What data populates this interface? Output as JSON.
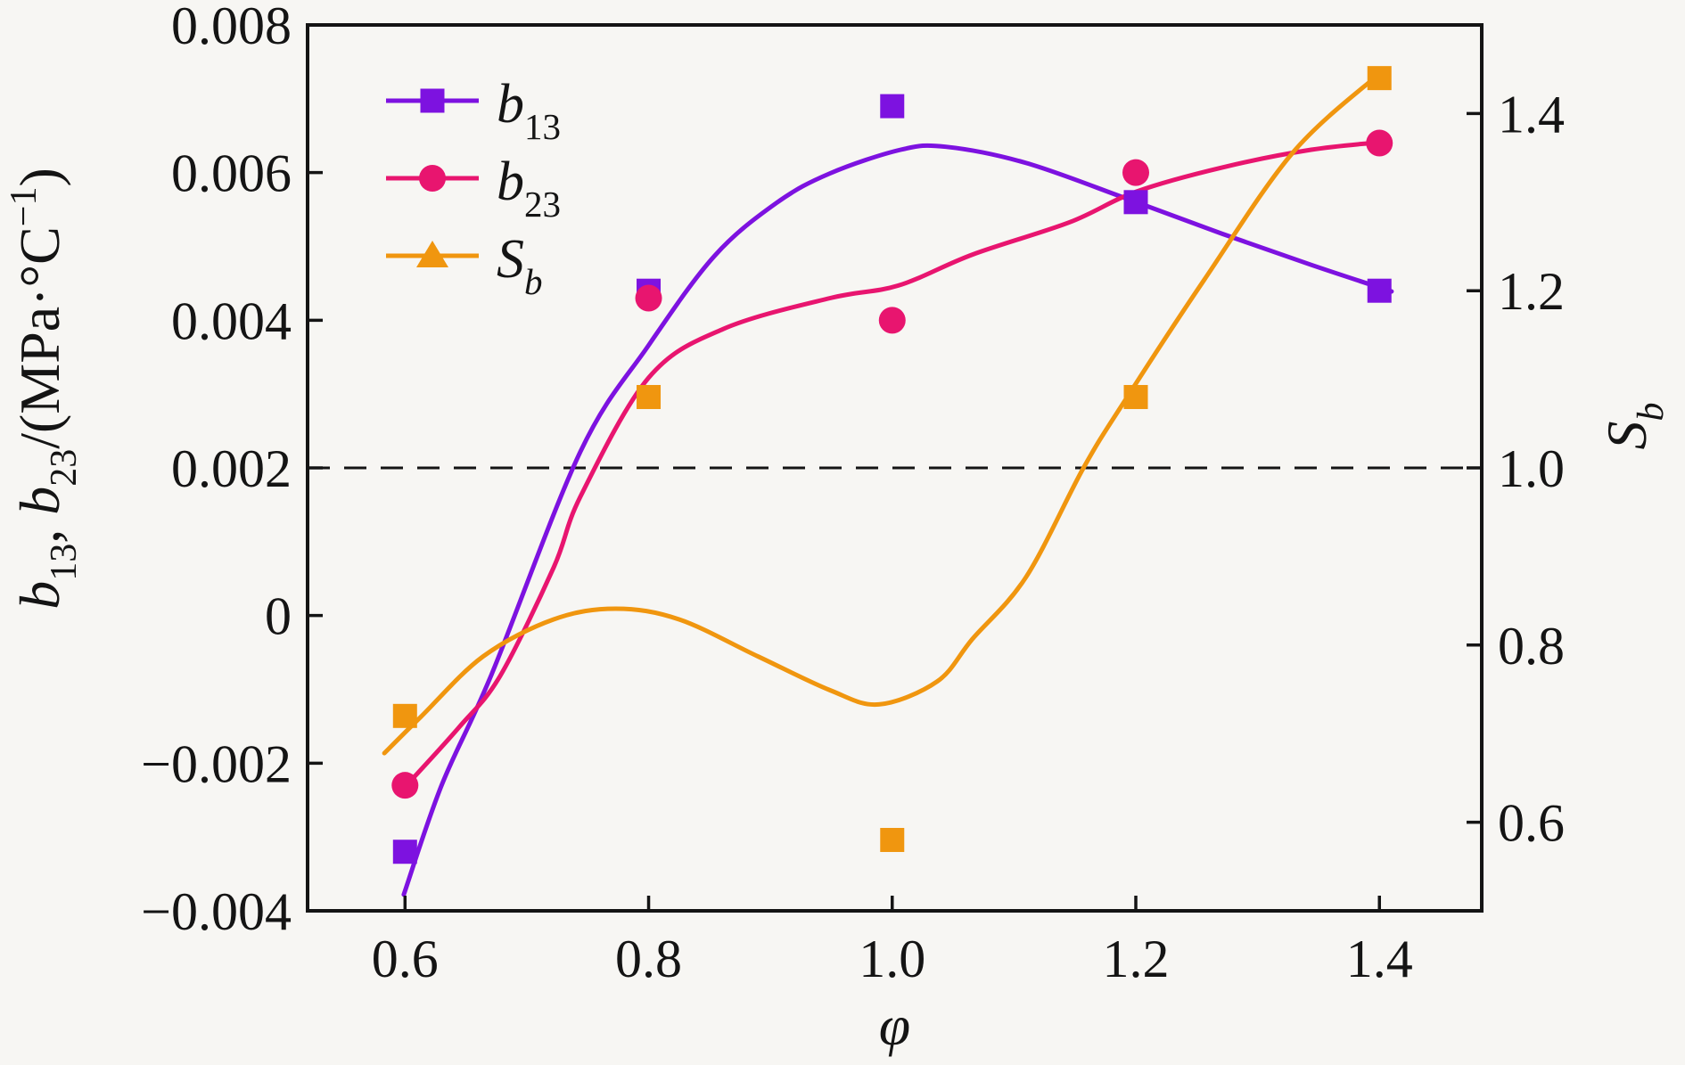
{
  "chart_data": {
    "type": "line",
    "background": "#f7f6f3",
    "frame_color": "#141414",
    "text_color": "#141414",
    "x_axis": {
      "label_segments": [
        {
          "text": "φ",
          "style": "italic"
        }
      ],
      "ticks": [
        0.6,
        0.8,
        1.0,
        1.2,
        1.4
      ],
      "tick_labels": [
        "0.6",
        "0.8",
        "1.0",
        "1.2",
        "1.4"
      ],
      "lim": [
        0.52,
        1.484
      ]
    },
    "left_axis": {
      "label_segments": [
        {
          "text": "b",
          "style": "italic"
        },
        {
          "text": "13",
          "style": "sub"
        },
        {
          "text": ", ",
          "style": "normal"
        },
        {
          "text": "b",
          "style": "italic"
        },
        {
          "text": "23",
          "style": "sub"
        },
        {
          "text": "/(MPa·°C",
          "style": "normal"
        },
        {
          "text": "−1",
          "style": "sup"
        },
        {
          "text": ")",
          "style": "normal"
        }
      ],
      "ticks": [
        0.008,
        0.006,
        0.004,
        0.002,
        0,
        -0.002,
        -0.004
      ],
      "tick_labels": [
        "0.008",
        "0.006",
        "0.004",
        "0.002",
        "0",
        "−0.002",
        "−0.004"
      ],
      "lim": [
        -0.004,
        0.008
      ]
    },
    "right_axis": {
      "label_segments": [
        {
          "text": "S",
          "style": "italic"
        },
        {
          "text": "b",
          "style": "subitalic"
        }
      ],
      "ticks": [
        1.4,
        1.2,
        1.0,
        0.8,
        0.6
      ],
      "tick_labels": [
        "1.4",
        "1.2",
        "1.0",
        "0.8",
        "0.6"
      ],
      "lim": [
        0.5,
        1.5
      ]
    },
    "reference_line": {
      "axis": "left",
      "value": 0.002,
      "style": "dashed",
      "color": "#141414"
    },
    "legend_position": "top-left",
    "series": [
      {
        "name": "b13",
        "axis": "left",
        "color": "#7d12e0",
        "marker": "square",
        "legend_marker": "square",
        "label_segments": [
          {
            "text": "b",
            "style": "italic"
          },
          {
            "text": "13",
            "style": "sub"
          }
        ],
        "points": [
          [
            0.6,
            -0.0032
          ],
          [
            0.8,
            0.0044
          ],
          [
            1.0,
            0.0069
          ],
          [
            1.2,
            0.0056
          ],
          [
            1.4,
            0.0044
          ]
        ],
        "fit_curve": [
          [
            0.599,
            -0.00378
          ],
          [
            0.63,
            -0.0023
          ],
          [
            0.671,
            -0.0008
          ],
          [
            0.744,
            0.00222
          ],
          [
            0.8,
            0.00366
          ],
          [
            0.854,
            0.00487
          ],
          [
            0.905,
            0.00559
          ],
          [
            0.949,
            0.00599
          ],
          [
            1.007,
            0.00631
          ],
          [
            1.044,
            0.00635
          ],
          [
            1.11,
            0.00613
          ],
          [
            1.192,
            0.00565
          ],
          [
            1.271,
            0.00517
          ],
          [
            1.344,
            0.00475
          ],
          [
            1.41,
            0.00439
          ]
        ]
      },
      {
        "name": "b23",
        "axis": "left",
        "color": "#e8156f",
        "marker": "circle",
        "legend_marker": "circle",
        "label_segments": [
          {
            "text": "b",
            "style": "italic"
          },
          {
            "text": "23",
            "style": "sub"
          }
        ],
        "points": [
          [
            0.6,
            -0.0023
          ],
          [
            0.8,
            0.0043
          ],
          [
            1.0,
            0.004
          ],
          [
            1.2,
            0.006
          ],
          [
            1.4,
            0.0064
          ]
        ],
        "fit_curve": [
          [
            0.599,
            -0.00234
          ],
          [
            0.644,
            -0.00152
          ],
          [
            0.678,
            -0.00082
          ],
          [
            0.722,
            0.00065
          ],
          [
            0.744,
            0.00161
          ],
          [
            0.8,
            0.00322
          ],
          [
            0.861,
            0.00388
          ],
          [
            0.949,
            0.0043
          ],
          [
            1.005,
            0.00447
          ],
          [
            1.066,
            0.00489
          ],
          [
            1.146,
            0.00533
          ],
          [
            1.2,
            0.00574
          ],
          [
            1.271,
            0.00607
          ],
          [
            1.344,
            0.00631
          ],
          [
            1.406,
            0.00642
          ]
        ]
      },
      {
        "name": "Sb",
        "axis": "right",
        "color": "#f0960f",
        "marker": "square",
        "legend_marker": "triangle",
        "label_segments": [
          {
            "text": "S",
            "style": "italic"
          },
          {
            "text": "b",
            "style": "subitalic"
          }
        ],
        "points": [
          [
            0.6,
            0.72
          ],
          [
            0.8,
            1.08
          ],
          [
            1.0,
            0.58
          ],
          [
            1.2,
            1.08
          ],
          [
            1.4,
            1.44
          ]
        ],
        "fit_curve": [
          [
            0.583,
            0.678
          ],
          [
            0.613,
            0.719
          ],
          [
            0.664,
            0.787
          ],
          [
            0.722,
            0.829
          ],
          [
            0.773,
            0.841
          ],
          [
            0.825,
            0.829
          ],
          [
            0.89,
            0.787
          ],
          [
            0.949,
            0.749
          ],
          [
            0.989,
            0.733
          ],
          [
            1.037,
            0.759
          ],
          [
            1.066,
            0.807
          ],
          [
            1.11,
            0.877
          ],
          [
            1.157,
            1.0
          ],
          [
            1.192,
            1.078
          ],
          [
            1.256,
            1.212
          ],
          [
            1.329,
            1.356
          ],
          [
            1.4,
            1.445
          ]
        ]
      }
    ]
  }
}
